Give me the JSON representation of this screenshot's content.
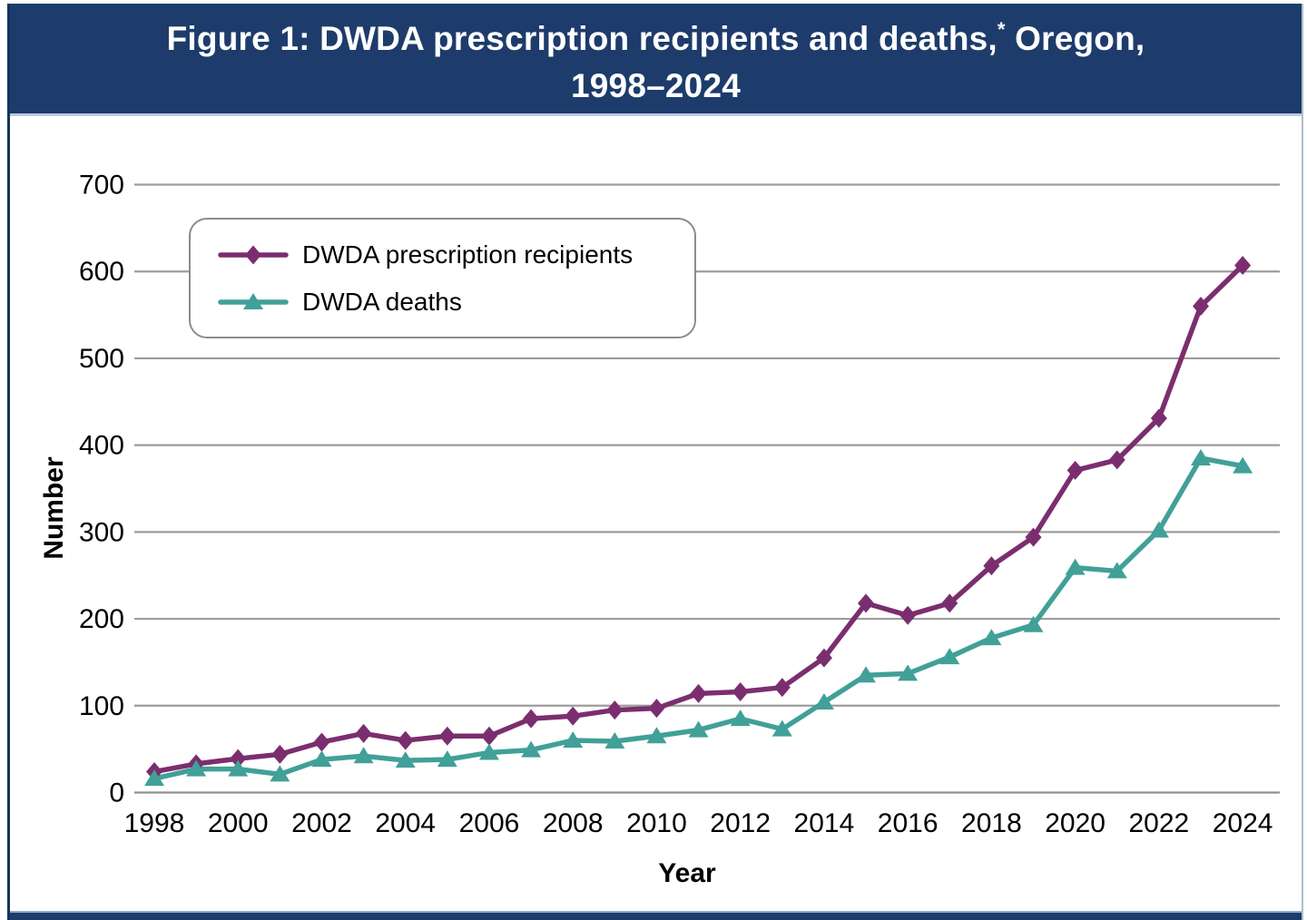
{
  "header": {
    "title_line1_prefix": "Figure 1: DWDA prescription recipients and deaths,",
    "title_asterisk": "*",
    "title_line1_suffix": " Oregon,",
    "title_line2": "1998–2024"
  },
  "colors": {
    "header_bg": "#1D3C6B",
    "purple": "#7B2E6F",
    "teal": "#41A098",
    "gridline": "#9C9C9C",
    "legend_border": "#8C8C8C"
  },
  "chart_data": {
    "type": "line",
    "title": "Figure 1: DWDA prescription recipients and deaths,* Oregon, 1998–2024",
    "xlabel": "Year",
    "ylabel": "Number",
    "ylim": [
      0,
      700
    ],
    "ytick_step": 100,
    "xtick_step": 2,
    "grid": "horizontal",
    "legend_position": "upper-left",
    "x": [
      1998,
      1999,
      2000,
      2001,
      2002,
      2003,
      2004,
      2005,
      2006,
      2007,
      2008,
      2009,
      2010,
      2011,
      2012,
      2013,
      2014,
      2015,
      2016,
      2017,
      2018,
      2019,
      2020,
      2021,
      2022,
      2023,
      2024
    ],
    "series": [
      {
        "name": "DWDA prescription recipients",
        "marker": "diamond",
        "color": "#7B2E6F",
        "values": [
          24,
          33,
          39,
          44,
          58,
          68,
          60,
          65,
          65,
          85,
          88,
          95,
          97,
          114,
          116,
          121,
          155,
          218,
          204,
          218,
          261,
          294,
          371,
          383,
          431,
          560,
          607
        ]
      },
      {
        "name": "DWDA deaths",
        "marker": "triangle",
        "color": "#41A098",
        "values": [
          16,
          27,
          27,
          21,
          38,
          42,
          37,
          38,
          46,
          49,
          60,
          59,
          65,
          72,
          85,
          73,
          104,
          135,
          137,
          156,
          178,
          193,
          259,
          255,
          302,
          385,
          376
        ]
      }
    ]
  }
}
